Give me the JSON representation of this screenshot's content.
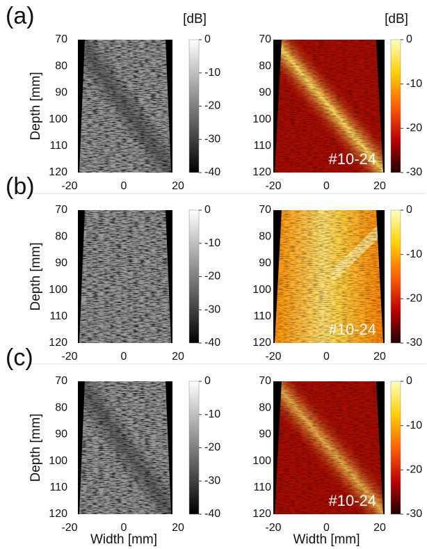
{
  "figure": {
    "rows": [
      {
        "label": "(a)"
      },
      {
        "label": "(b)"
      },
      {
        "label": "(c)"
      }
    ],
    "y_axis_label": "Depth [mm]",
    "x_axis_label": "Width [mm]",
    "yticks": [
      70,
      80,
      90,
      100,
      110,
      120
    ],
    "xticks": [
      -20,
      0,
      20
    ],
    "colorbar_unit": "[dB]",
    "left_colorbar_ticks": [
      0,
      -10,
      -20,
      -30,
      -40
    ],
    "right_colorbar_ticks": [
      0,
      -10,
      -20,
      -30
    ],
    "annotation": "#10-24"
  }
}
